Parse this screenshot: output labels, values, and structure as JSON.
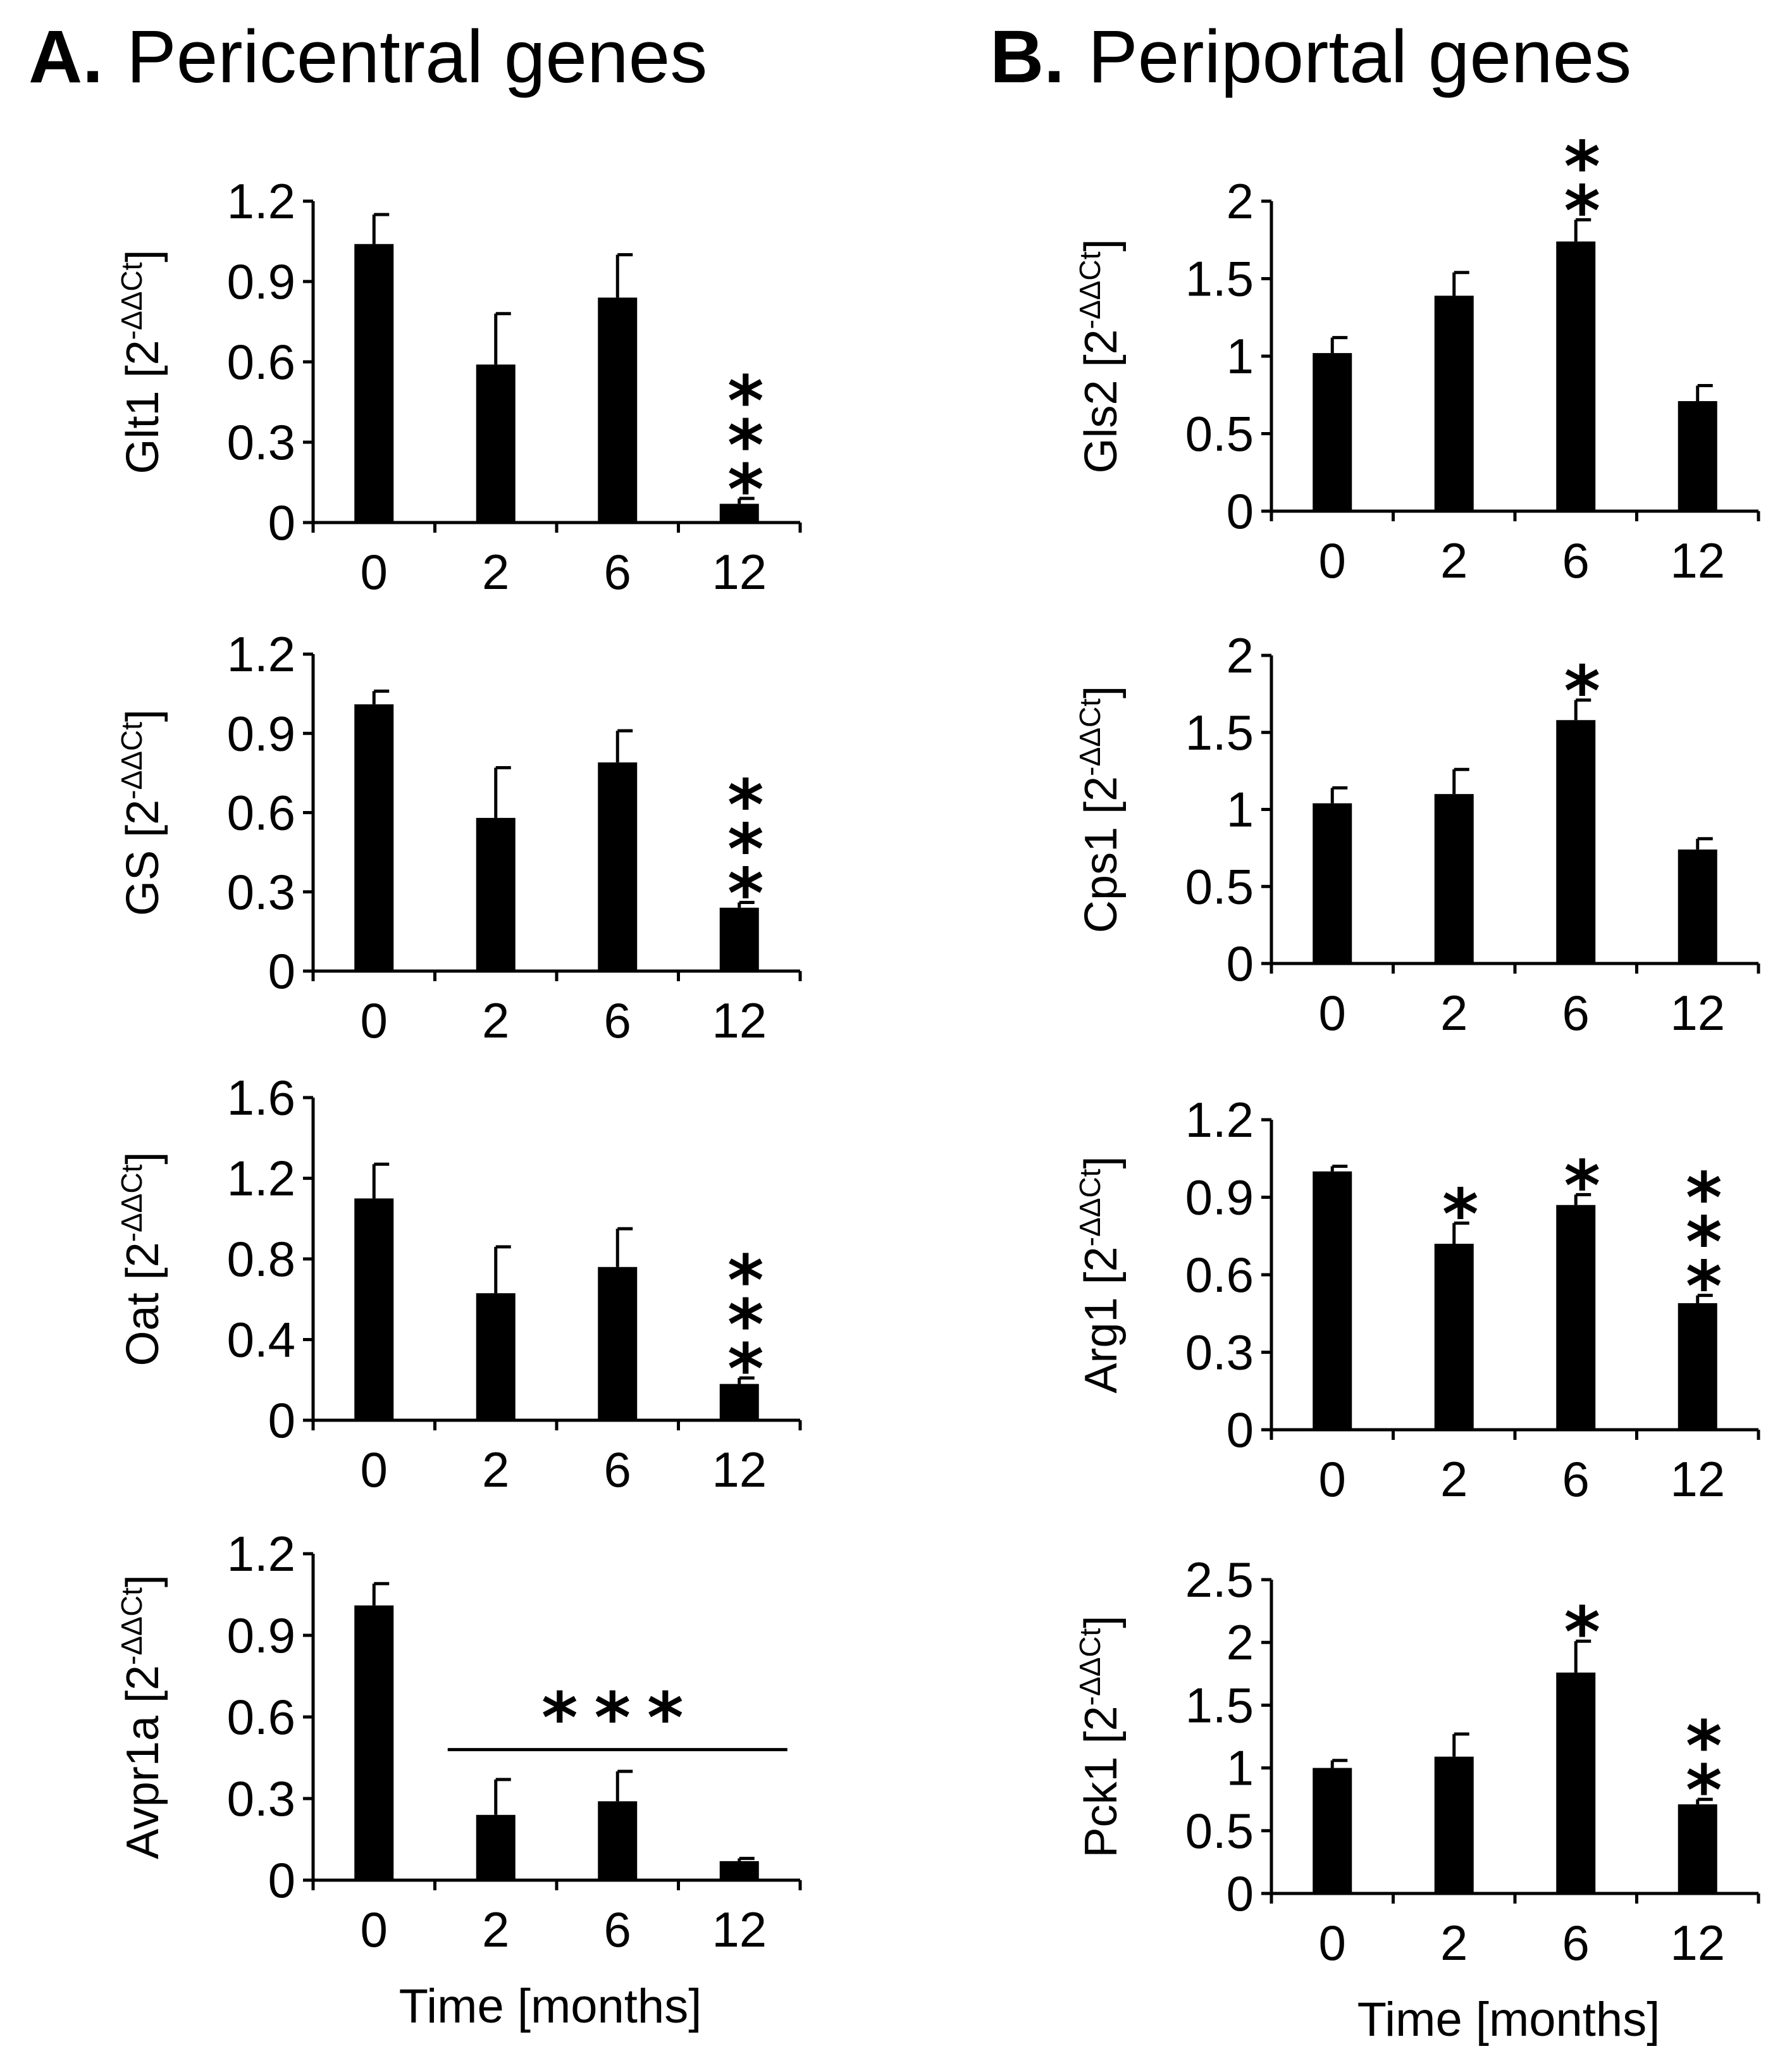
{
  "panels": [
    {
      "letter": "A.",
      "title": "Pericentral genes"
    },
    {
      "letter": "B.",
      "title": "Periportal genes"
    }
  ],
  "chart_data": [
    {
      "type": "bar",
      "panel": "A",
      "gene": "Glt1",
      "ylabel_prefix": "Glt1 [2",
      "ylabel_exp": "-ΔΔCt",
      "ylabel_suffix": "]",
      "categories": [
        "0",
        "2",
        "6",
        "12"
      ],
      "values": [
        1.04,
        0.59,
        0.84,
        0.07
      ],
      "errors": [
        0.11,
        0.19,
        0.16,
        0.02
      ],
      "ylim": [
        0,
        1.2
      ],
      "yticks": [
        0,
        0.3,
        0.6,
        0.9,
        1.2
      ],
      "ytick_labels": [
        "0",
        "0.3",
        "0.6",
        "0.9",
        "1.2"
      ],
      "significance": [
        "",
        "",
        "",
        "***"
      ],
      "xlabel": ""
    },
    {
      "type": "bar",
      "panel": "A",
      "gene": "GS",
      "ylabel_prefix": "GS [2",
      "ylabel_exp": "-ΔΔCt",
      "ylabel_suffix": "]",
      "categories": [
        "0",
        "2",
        "6",
        "12"
      ],
      "values": [
        1.01,
        0.58,
        0.79,
        0.24
      ],
      "errors": [
        0.05,
        0.19,
        0.12,
        0.02
      ],
      "ylim": [
        0,
        1.2
      ],
      "yticks": [
        0,
        0.3,
        0.6,
        0.9,
        1.2
      ],
      "ytick_labels": [
        "0",
        "0.3",
        "0.6",
        "0.9",
        "1.2"
      ],
      "significance": [
        "",
        "",
        "",
        "***"
      ],
      "xlabel": ""
    },
    {
      "type": "bar",
      "panel": "A",
      "gene": "Oat",
      "ylabel_prefix": "Oat [2",
      "ylabel_exp": "-ΔΔCt",
      "ylabel_suffix": "]",
      "categories": [
        "0",
        "2",
        "6",
        "12"
      ],
      "values": [
        1.1,
        0.63,
        0.76,
        0.18
      ],
      "errors": [
        0.17,
        0.23,
        0.19,
        0.03
      ],
      "ylim": [
        0,
        1.6
      ],
      "yticks": [
        0,
        0.4,
        0.8,
        1.2,
        1.6
      ],
      "ytick_labels": [
        "0",
        "0.4",
        "0.8",
        "1.2",
        "1.6"
      ],
      "significance": [
        "",
        "",
        "",
        "***"
      ],
      "xlabel": ""
    },
    {
      "type": "bar",
      "panel": "A",
      "gene": "Avpr1a",
      "ylabel_prefix": "Avpr1a [2",
      "ylabel_exp": "-ΔΔCt",
      "ylabel_suffix": "]",
      "categories": [
        "0",
        "2",
        "6",
        "12"
      ],
      "values": [
        1.01,
        0.24,
        0.29,
        0.07
      ],
      "errors": [
        0.08,
        0.13,
        0.11,
        0.01
      ],
      "ylim": [
        0,
        1.2
      ],
      "yticks": [
        0,
        0.3,
        0.6,
        0.9,
        1.2
      ],
      "ytick_labels": [
        "0",
        "0.3",
        "0.6",
        "0.9",
        "1.2"
      ],
      "significance": [
        "",
        "",
        "",
        ""
      ],
      "group_significance": {
        "label": "***",
        "from": 1,
        "to": 3,
        "y": 0.48
      },
      "xlabel": "Time [months]"
    },
    {
      "type": "bar",
      "panel": "B",
      "gene": "Gls2",
      "ylabel_prefix": "Gls2 [2",
      "ylabel_exp": "-ΔΔCt",
      "ylabel_suffix": "]",
      "categories": [
        "0",
        "2",
        "6",
        "12"
      ],
      "values": [
        1.02,
        1.39,
        1.74,
        0.71
      ],
      "errors": [
        0.1,
        0.15,
        0.14,
        0.1
      ],
      "ylim": [
        0,
        2
      ],
      "yticks": [
        0,
        0.5,
        1,
        1.5,
        2
      ],
      "ytick_labels": [
        "0",
        "0.5",
        "1",
        "1.5",
        "2"
      ],
      "significance": [
        "",
        "",
        "**",
        ""
      ],
      "xlabel": ""
    },
    {
      "type": "bar",
      "panel": "B",
      "gene": "Cps1",
      "ylabel_prefix": "Cps1 [2",
      "ylabel_exp": "-ΔΔCt",
      "ylabel_suffix": "]",
      "categories": [
        "0",
        "2",
        "6",
        "12"
      ],
      "values": [
        1.04,
        1.1,
        1.58,
        0.74
      ],
      "errors": [
        0.1,
        0.16,
        0.13,
        0.07
      ],
      "ylim": [
        0,
        2
      ],
      "yticks": [
        0,
        0.5,
        1,
        1.5,
        2
      ],
      "ytick_labels": [
        "0",
        "0.5",
        "1",
        "1.5",
        "2"
      ],
      "significance": [
        "",
        "",
        "*",
        ""
      ],
      "xlabel": ""
    },
    {
      "type": "bar",
      "panel": "B",
      "gene": "Arg1",
      "ylabel_prefix": "Arg1 [2",
      "ylabel_exp": "-ΔΔCt",
      "ylabel_suffix": "]",
      "categories": [
        "0",
        "2",
        "6",
        "12"
      ],
      "values": [
        1.0,
        0.72,
        0.87,
        0.49
      ],
      "errors": [
        0.02,
        0.08,
        0.04,
        0.03
      ],
      "ylim": [
        0,
        1.2
      ],
      "yticks": [
        0,
        0.3,
        0.6,
        0.9,
        1.2
      ],
      "ytick_labels": [
        "0",
        "0.3",
        "0.6",
        "0.9",
        "1.2"
      ],
      "significance": [
        "",
        "*",
        "*",
        "***"
      ],
      "xlabel": ""
    },
    {
      "type": "bar",
      "panel": "B",
      "gene": "Pck1",
      "ylabel_prefix": "Pck1 [2",
      "ylabel_exp": "-ΔΔCt",
      "ylabel_suffix": "]",
      "categories": [
        "0",
        "2",
        "6",
        "12"
      ],
      "values": [
        1.0,
        1.09,
        1.76,
        0.71
      ],
      "errors": [
        0.06,
        0.18,
        0.25,
        0.04
      ],
      "ylim": [
        0,
        2.5
      ],
      "yticks": [
        0,
        0.5,
        1,
        1.5,
        2,
        2.5
      ],
      "ytick_labels": [
        "0",
        "0.5",
        "1",
        "1.5",
        "2",
        "2.5"
      ],
      "significance": [
        "",
        "",
        "*",
        "**"
      ],
      "xlabel": "Time [months]"
    }
  ]
}
